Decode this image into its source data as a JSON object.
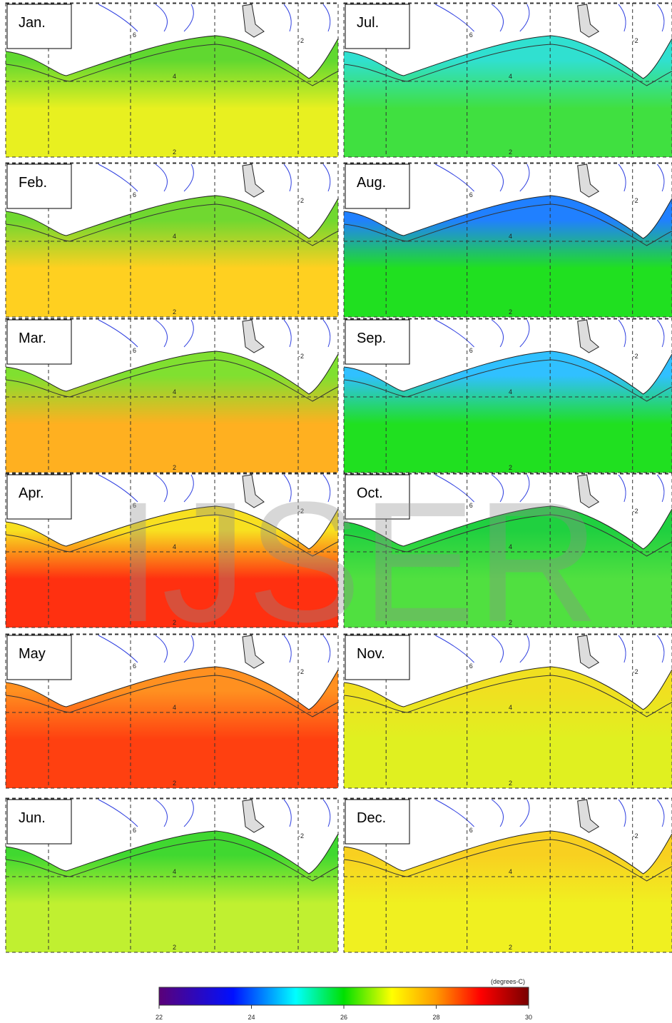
{
  "panels": [
    {
      "label": "Jan.",
      "coast": "#60d830",
      "sea": "#e8f020"
    },
    {
      "label": "Feb.",
      "coast": "#70d830",
      "sea": "#ffd020"
    },
    {
      "label": "Mar.",
      "coast": "#80e030",
      "sea": "#ffb020"
    },
    {
      "label": "Apr.",
      "coast": "#f8e020",
      "sea": "#ff3010"
    },
    {
      "label": "May",
      "coast": "#ff9020",
      "sea": "#ff4010"
    },
    {
      "label": "Jun.",
      "coast": "#40d830",
      "sea": "#c0f030"
    },
    {
      "label": "Jul.",
      "coast": "#30e0d0",
      "sea": "#40e040"
    },
    {
      "label": "Aug.",
      "coast": "#2080ff",
      "sea": "#20e020"
    },
    {
      "label": "Sep.",
      "coast": "#30c0ff",
      "sea": "#20e020"
    },
    {
      "label": "Oct.",
      "coast": "#20d040",
      "sea": "#50e040"
    },
    {
      "label": "Nov.",
      "coast": "#f0e020",
      "sea": "#e0f020"
    },
    {
      "label": "Dec.",
      "coast": "#f8d020",
      "sea": "#f0f020"
    }
  ],
  "grid_labels": [
    "6",
    "4",
    "2",
    "-2"
  ],
  "colorbar": {
    "ticks": [
      22,
      24,
      26,
      28,
      30
    ],
    "unit": "(degrees-C)"
  },
  "watermark": "IJSER"
}
